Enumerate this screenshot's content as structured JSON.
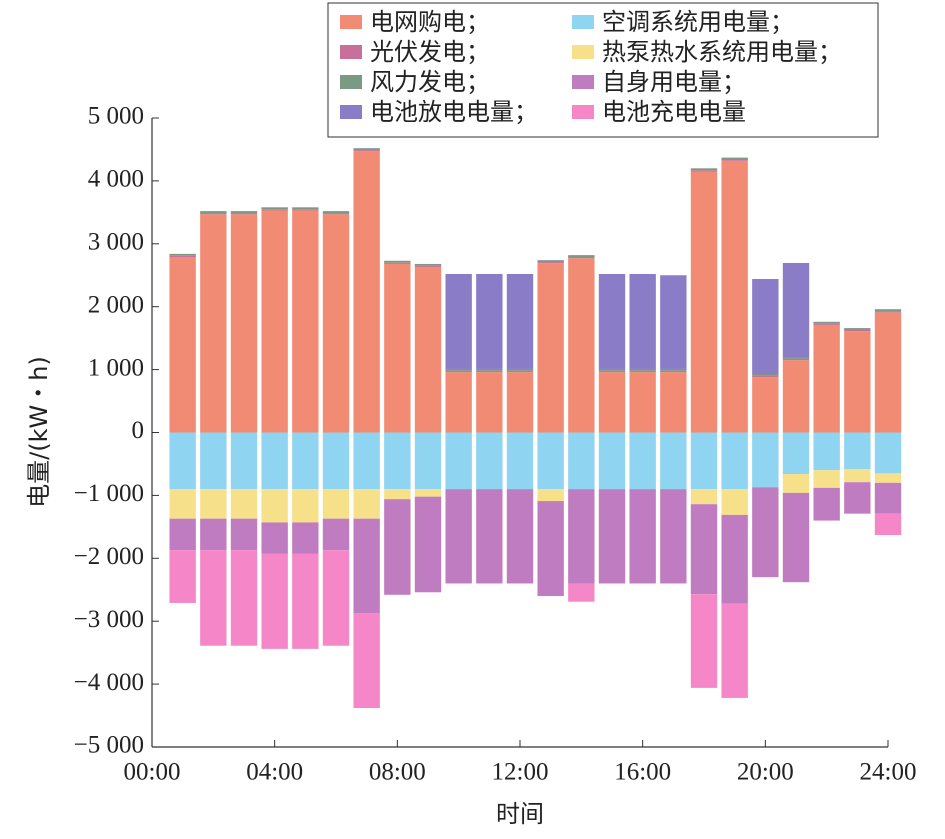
{
  "chart_data": {
    "type": "bar",
    "stacked": true,
    "xlabel": "时间",
    "ylabel": "电量/(kW・h)",
    "x": [
      1,
      2,
      3,
      4,
      5,
      6,
      7,
      8,
      9,
      10,
      11,
      12,
      13,
      14,
      15,
      16,
      17,
      18,
      19,
      20,
      21,
      22,
      23,
      24
    ],
    "xlim": [
      0,
      24
    ],
    "xticks": [
      {
        "value": 0,
        "label": "00:00"
      },
      {
        "value": 4,
        "label": "04:00"
      },
      {
        "value": 8,
        "label": "08:00"
      },
      {
        "value": 12,
        "label": "12:00"
      },
      {
        "value": 16,
        "label": "16:00"
      },
      {
        "value": 20,
        "label": "20:00"
      },
      {
        "value": 24,
        "label": "24:00"
      }
    ],
    "ylim": [
      -5000,
      5000
    ],
    "yticks": [
      {
        "value": -5000,
        "label": "−5 000"
      },
      {
        "value": -4000,
        "label": "−4 000"
      },
      {
        "value": -3000,
        "label": "−3 000"
      },
      {
        "value": -2000,
        "label": "−2 000"
      },
      {
        "value": -1000,
        "label": "−1 000"
      },
      0,
      {
        "value": 1000,
        "label": "1 000"
      },
      {
        "value": 2000,
        "label": "2 000"
      },
      {
        "value": 3000,
        "label": "3 000"
      },
      {
        "value": 4000,
        "label": "4 000"
      },
      {
        "value": 5000,
        "label": "5 000"
      }
    ],
    "legend": "upper right",
    "series": [
      {
        "name": "电网购电；",
        "color": "#f28b74",
        "values": [
          2790,
          3470,
          3470,
          3530,
          3530,
          3470,
          4470,
          2680,
          2630,
          960,
          960,
          960,
          2690,
          2770,
          960,
          960,
          960,
          4150,
          4320,
          880,
          1150,
          1710,
          1610,
          1910
        ]
      },
      {
        "name": "光伏发电；",
        "color": "#c9709a",
        "values": [
          20,
          20,
          20,
          20,
          20,
          20,
          20,
          20,
          20,
          20,
          20,
          20,
          20,
          20,
          20,
          20,
          20,
          20,
          20,
          20,
          20,
          20,
          20,
          20
        ]
      },
      {
        "name": "风力发电；",
        "color": "#7a9a82",
        "values": [
          30,
          30,
          30,
          30,
          30,
          30,
          30,
          30,
          30,
          30,
          30,
          30,
          30,
          30,
          30,
          30,
          30,
          30,
          30,
          30,
          30,
          30,
          30,
          30
        ]
      },
      {
        "name": "电池放电电量；",
        "color": "#8b7cc8",
        "values": [
          0,
          0,
          0,
          0,
          0,
          0,
          0,
          0,
          0,
          1510,
          1510,
          1510,
          0,
          0,
          1510,
          1510,
          1490,
          0,
          0,
          1510,
          1495,
          0,
          0,
          0
        ]
      },
      {
        "name": "空调系统用电量；",
        "color": "#8fd4f0",
        "values": [
          -900,
          -900,
          -900,
          -900,
          -900,
          -900,
          -900,
          -900,
          -900,
          -900,
          -900,
          -900,
          -900,
          -900,
          -900,
          -900,
          -900,
          -900,
          -900,
          -870,
          -660,
          -600,
          -580,
          -650
        ]
      },
      {
        "name": "热泵热水系统用电量；",
        "color": "#f7e08a",
        "values": [
          -470,
          -470,
          -470,
          -530,
          -530,
          -470,
          -470,
          -160,
          -120,
          0,
          0,
          0,
          -190,
          0,
          0,
          0,
          0,
          -240,
          -410,
          0,
          -300,
          -280,
          -210,
          -150
        ]
      },
      {
        "name": "自身用电量；",
        "color": "#c07cc0",
        "values": [
          -500,
          -500,
          -500,
          -500,
          -500,
          -500,
          -1500,
          -1520,
          -1520,
          -1500,
          -1500,
          -1500,
          -1510,
          -1500,
          -1500,
          -1500,
          -1500,
          -1430,
          -1410,
          -1430,
          -1420,
          -520,
          -500,
          -490
        ]
      },
      {
        "name": "电池充电电量",
        "color": "#f587c8",
        "values": [
          -840,
          -1520,
          -1520,
          -1510,
          -1510,
          -1520,
          -1510,
          0,
          0,
          0,
          0,
          0,
          0,
          -290,
          0,
          0,
          0,
          -1490,
          -1500,
          0,
          0,
          0,
          0,
          -340
        ]
      }
    ]
  }
}
